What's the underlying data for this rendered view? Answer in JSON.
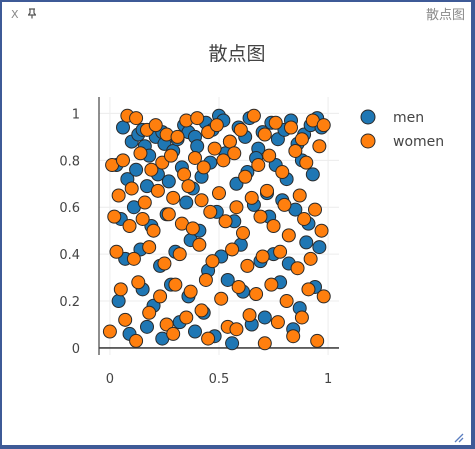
{
  "window": {
    "title": "散点图",
    "close_label": "X"
  },
  "colors": {
    "background": "#3e5a97",
    "men": "#1f77b4",
    "women": "#ff7f0e"
  },
  "chart_data": {
    "type": "scatter",
    "title": "散点图",
    "xlabel": "",
    "ylabel": "",
    "xlim": [
      -0.05,
      1.05
    ],
    "ylim": [
      -0.03,
      1.07
    ],
    "xticks": [
      0,
      0.5,
      1
    ],
    "xtick_labels": [
      "0",
      "0.5",
      "1"
    ],
    "yticks": [
      0,
      0.2,
      0.4,
      0.6,
      0.8,
      1
    ],
    "ytick_labels": [
      "0",
      "0.2",
      "0.4",
      "0.6",
      "0.8",
      "1"
    ],
    "grid": true,
    "legend": "top-right",
    "series": [
      {
        "name": "men",
        "x": [
          0.06,
          0.1,
          0.13,
          0.15,
          0.16,
          0.18,
          0.21,
          0.24,
          0.25,
          0.29,
          0.31,
          0.34,
          0.36,
          0.39,
          0.4,
          0.44,
          0.47,
          0.5,
          0.52,
          0.55,
          0.59,
          0.62,
          0.64,
          0.68,
          0.7,
          0.74,
          0.77,
          0.8,
          0.83,
          0.86,
          0.89,
          0.92,
          0.95,
          0.97,
          0.03,
          0.08,
          0.12,
          0.17,
          0.22,
          0.27,
          0.33,
          0.38,
          0.42,
          0.46,
          0.53,
          0.58,
          0.63,
          0.67,
          0.72,
          0.76,
          0.81,
          0.88,
          0.93,
          0.05,
          0.11,
          0.19,
          0.26,
          0.35,
          0.41,
          0.49,
          0.57,
          0.66,
          0.73,
          0.79,
          0.85,
          0.91,
          0.07,
          0.14,
          0.23,
          0.3,
          0.37,
          0.45,
          0.51,
          0.6,
          0.69,
          0.75,
          0.82,
          0.9,
          0.96,
          0.04,
          0.15,
          0.2,
          0.28,
          0.36,
          0.43,
          0.54,
          0.61,
          0.71,
          0.78,
          0.87,
          0.94,
          0.09,
          0.17,
          0.24,
          0.32,
          0.39,
          0.48,
          0.56,
          0.65,
          0.84
        ],
        "y": [
          0.94,
          0.88,
          0.91,
          0.93,
          0.86,
          0.82,
          0.9,
          0.92,
          0.87,
          0.84,
          0.89,
          0.95,
          0.92,
          0.9,
          0.86,
          0.96,
          0.93,
          0.99,
          0.97,
          0.88,
          0.94,
          0.9,
          0.98,
          0.85,
          0.92,
          0.96,
          0.89,
          0.93,
          0.97,
          0.87,
          0.91,
          0.95,
          0.98,
          0.94,
          0.78,
          0.72,
          0.76,
          0.69,
          0.74,
          0.71,
          0.77,
          0.68,
          0.73,
          0.79,
          0.83,
          0.7,
          0.75,
          0.81,
          0.66,
          0.78,
          0.72,
          0.8,
          0.74,
          0.55,
          0.6,
          0.52,
          0.57,
          0.62,
          0.5,
          0.58,
          0.54,
          0.61,
          0.56,
          0.63,
          0.59,
          0.53,
          0.38,
          0.42,
          0.35,
          0.41,
          0.46,
          0.33,
          0.39,
          0.44,
          0.37,
          0.4,
          0.36,
          0.45,
          0.43,
          0.2,
          0.25,
          0.18,
          0.27,
          0.22,
          0.15,
          0.29,
          0.24,
          0.13,
          0.28,
          0.17,
          0.26,
          0.06,
          0.09,
          0.04,
          0.11,
          0.07,
          0.05,
          0.02,
          0.1,
          0.08
        ]
      },
      {
        "name": "women",
        "x": [
          0.08,
          0.12,
          0.17,
          0.21,
          0.26,
          0.31,
          0.35,
          0.4,
          0.45,
          0.49,
          0.55,
          0.6,
          0.66,
          0.71,
          0.76,
          0.83,
          0.88,
          0.93,
          0.98,
          0.01,
          0.06,
          0.14,
          0.19,
          0.24,
          0.28,
          0.34,
          0.39,
          0.43,
          0.48,
          0.52,
          0.57,
          0.62,
          0.68,
          0.73,
          0.79,
          0.85,
          0.9,
          0.96,
          0.04,
          0.1,
          0.16,
          0.22,
          0.29,
          0.36,
          0.42,
          0.5,
          0.58,
          0.65,
          0.72,
          0.8,
          0.87,
          0.94,
          0.02,
          0.09,
          0.15,
          0.2,
          0.27,
          0.33,
          0.38,
          0.46,
          0.53,
          0.61,
          0.69,
          0.75,
          0.82,
          0.89,
          0.97,
          0.03,
          0.11,
          0.18,
          0.25,
          0.32,
          0.41,
          0.47,
          0.56,
          0.63,
          0.7,
          0.78,
          0.86,
          0.92,
          0.05,
          0.13,
          0.23,
          0.3,
          0.37,
          0.44,
          0.51,
          0.59,
          0.67,
          0.74,
          0.81,
          0.91,
          0.98,
          0.07,
          0.18,
          0.26,
          0.35,
          0.42,
          0.54,
          0.64,
          0.77,
          0.88,
          0.0,
          0.12,
          0.29,
          0.45,
          0.58,
          0.71,
          0.84,
          0.95
        ],
        "y": [
          0.99,
          0.98,
          0.93,
          0.95,
          0.91,
          0.9,
          0.97,
          0.98,
          0.92,
          0.95,
          0.88,
          0.93,
          0.99,
          0.91,
          0.96,
          0.94,
          0.89,
          0.97,
          0.95,
          0.78,
          0.8,
          0.83,
          0.76,
          0.79,
          0.82,
          0.74,
          0.81,
          0.77,
          0.85,
          0.8,
          0.83,
          0.73,
          0.78,
          0.82,
          0.75,
          0.84,
          0.79,
          0.86,
          0.65,
          0.68,
          0.62,
          0.67,
          0.64,
          0.69,
          0.63,
          0.66,
          0.6,
          0.64,
          0.67,
          0.61,
          0.65,
          0.59,
          0.56,
          0.52,
          0.55,
          0.5,
          0.57,
          0.53,
          0.51,
          0.58,
          0.54,
          0.49,
          0.56,
          0.52,
          0.48,
          0.55,
          0.5,
          0.41,
          0.38,
          0.43,
          0.36,
          0.4,
          0.44,
          0.37,
          0.42,
          0.35,
          0.39,
          0.41,
          0.34,
          0.38,
          0.25,
          0.28,
          0.22,
          0.27,
          0.24,
          0.29,
          0.21,
          0.26,
          0.23,
          0.27,
          0.2,
          0.25,
          0.22,
          0.12,
          0.15,
          0.1,
          0.13,
          0.16,
          0.09,
          0.14,
          0.11,
          0.13,
          0.07,
          0.03,
          0.06,
          0.04,
          0.08,
          0.02,
          0.05,
          0.03
        ]
      }
    ]
  }
}
